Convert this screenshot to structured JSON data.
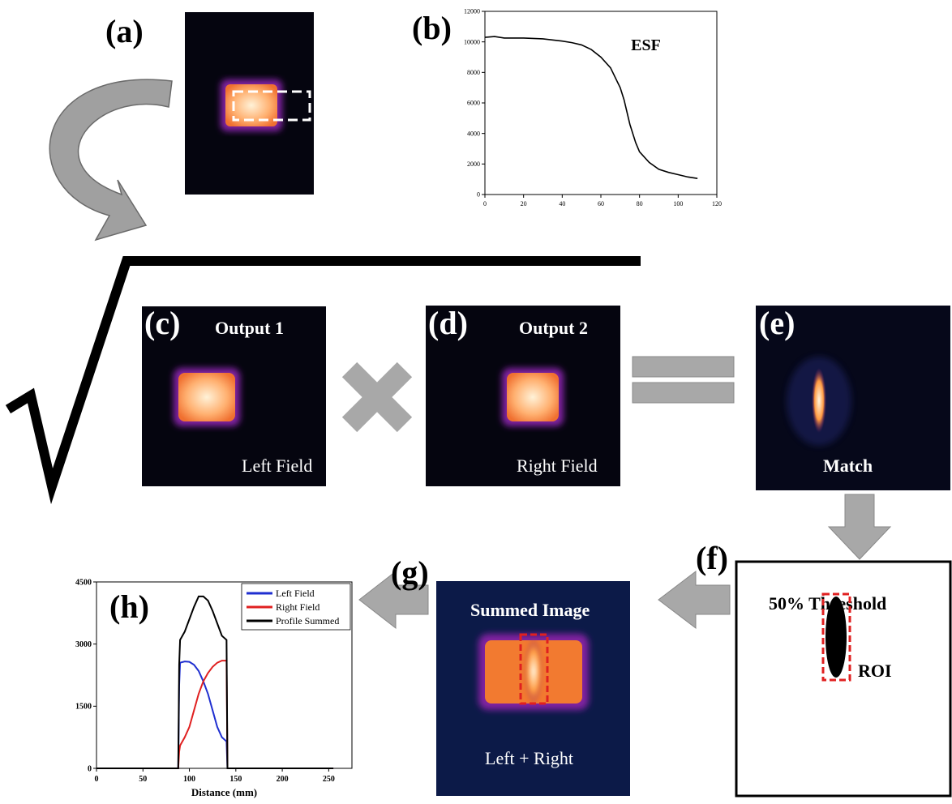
{
  "panels": {
    "a": {
      "label": "(a)"
    },
    "b": {
      "label": "(b)"
    },
    "c": {
      "label": "(c)",
      "title": "Output 1",
      "caption": "Left Field"
    },
    "d": {
      "label": "(d)",
      "title": "Output 2",
      "caption": "Right Field"
    },
    "e": {
      "label": "(e)",
      "caption": "Match"
    },
    "f": {
      "label": "(f)",
      "title": "50% Threshold",
      "caption": "ROI"
    },
    "g": {
      "label": "(g)",
      "title": "Summed Image",
      "caption": "Left + Right"
    },
    "h": {
      "label": "(h)"
    }
  },
  "chart_data": [
    {
      "type": "line",
      "annotation": "ESF",
      "x": [
        0,
        5,
        10,
        20,
        30,
        40,
        45,
        50,
        55,
        60,
        65,
        70,
        72,
        75,
        78,
        80,
        85,
        90,
        95,
        100,
        105,
        110
      ],
      "series": [
        {
          "color": "#000000",
          "values": [
            10300,
            10350,
            10250,
            10250,
            10200,
            10050,
            9950,
            9800,
            9500,
            9000,
            8300,
            7000,
            6200,
            4600,
            3400,
            2800,
            2100,
            1650,
            1450,
            1300,
            1150,
            1050
          ]
        }
      ],
      "xlim": [
        0,
        120
      ],
      "xticks": [
        0,
        20,
        40,
        60,
        80,
        100,
        120
      ],
      "ylim": [
        0,
        12000
      ],
      "yticks": [
        0,
        2000,
        4000,
        6000,
        8000,
        10000,
        12000
      ]
    },
    {
      "type": "line",
      "xlabel": "Distance (mm)",
      "legend": "upper right",
      "x": [
        0,
        88,
        89,
        90,
        95,
        100,
        105,
        110,
        115,
        120,
        125,
        130,
        135,
        140,
        141,
        150,
        200,
        255
      ],
      "series": [
        {
          "name": "Left Field",
          "color": "#1f2fd0",
          "values": [
            0,
            0,
            2000,
            2550,
            2580,
            2570,
            2500,
            2350,
            2100,
            1800,
            1400,
            1000,
            750,
            650,
            0,
            0,
            0,
            0
          ]
        },
        {
          "name": "Right Field",
          "color": "#e02020",
          "values": [
            0,
            0,
            400,
            550,
            750,
            1000,
            1400,
            1800,
            2100,
            2300,
            2450,
            2550,
            2600,
            2600,
            0,
            0,
            0,
            0
          ]
        },
        {
          "name": "Profile Summed",
          "color": "#000000",
          "values": [
            0,
            0,
            2500,
            3100,
            3300,
            3600,
            3900,
            4150,
            4150,
            4050,
            3800,
            3500,
            3200,
            3100,
            0,
            0,
            0,
            0
          ]
        }
      ],
      "xlim": [
        0,
        275
      ],
      "xticks": [
        0,
        50,
        100,
        150,
        200,
        250
      ],
      "ylim": [
        0,
        4500
      ],
      "yticks": [
        0,
        1500,
        3000,
        4500
      ]
    }
  ]
}
